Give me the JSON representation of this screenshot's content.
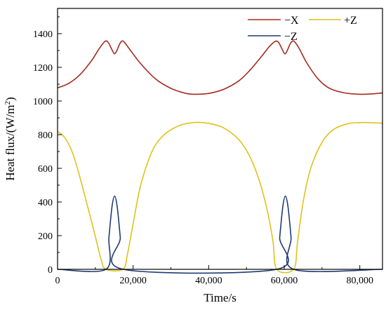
{
  "chart_data": {
    "type": "line",
    "xlabel": "Time/s",
    "ylabel_main": "Heat flux/(W/m",
    "ylabel_sup": "2",
    "ylabel_tail": ")",
    "xlim": [
      0,
      86000
    ],
    "ylim": [
      0,
      1550
    ],
    "x_ticks": [
      0,
      20000,
      40000,
      60000,
      80000
    ],
    "x_tick_labels": [
      "0",
      "20,000",
      "40,000",
      "60,000",
      "80,000"
    ],
    "y_ticks": [
      0,
      200,
      400,
      600,
      800,
      1000,
      1200,
      1400
    ],
    "y_tick_labels": [
      "0",
      "200",
      "400",
      "600",
      "800",
      "1000",
      "1200",
      "1400"
    ],
    "grid": false,
    "legend_position": "top-right",
    "series": [
      {
        "name": "−X",
        "color": "#a52a1e",
        "x": [
          0,
          3000,
          6000,
          9000,
          11000,
          12600,
          13500,
          14500,
          15100,
          15700,
          16600,
          17400,
          19000,
          22000,
          26000,
          30000,
          34000,
          36500,
          40000,
          44000,
          48000,
          51000,
          54000,
          56000,
          57700,
          58600,
          59600,
          60200,
          60800,
          61700,
          62600,
          64000,
          66000,
          69000,
          72000,
          76000,
          80000,
          83000,
          86000
        ],
        "values": [
          1078,
          1105,
          1158,
          1240,
          1310,
          1355,
          1345,
          1300,
          1280,
          1300,
          1345,
          1355,
          1310,
          1222,
          1130,
          1075,
          1045,
          1040,
          1045,
          1070,
          1120,
          1185,
          1265,
          1322,
          1355,
          1345,
          1300,
          1280,
          1300,
          1345,
          1355,
          1310,
          1225,
          1130,
          1075,
          1048,
          1040,
          1042,
          1048
        ]
      },
      {
        "name": "+Z",
        "color": "#e0c21a",
        "x": [
          0,
          2000,
          4000,
          6000,
          8000,
          10000,
          11500,
          12800,
          17300,
          18500,
          20000,
          22000,
          25000,
          28000,
          32000,
          36000,
          40000,
          44000,
          48000,
          51000,
          53500,
          55500,
          57000,
          58000,
          62500,
          63500,
          65000,
          67000,
          70000,
          73000,
          77000,
          81000,
          84000,
          86000
        ],
        "values": [
          820,
          780,
          690,
          540,
          370,
          195,
          60,
          0,
          0,
          90,
          270,
          500,
          700,
          795,
          852,
          872,
          867,
          840,
          770,
          665,
          520,
          350,
          170,
          0,
          0,
          160,
          400,
          600,
          755,
          830,
          866,
          872,
          870,
          868
        ]
      },
      {
        "name": "−Z",
        "color": "#1f3a73",
        "x": [
          0,
          12800,
          13600,
          14400,
          15100,
          15800,
          16600,
          17400,
          58000,
          58800,
          59600,
          60300,
          61000,
          61800,
          62500,
          86000
        ],
        "values": [
          0,
          0,
          190,
          370,
          435,
          370,
          190,
          0,
          0,
          190,
          370,
          435,
          370,
          190,
          0,
          0
        ]
      }
    ]
  }
}
